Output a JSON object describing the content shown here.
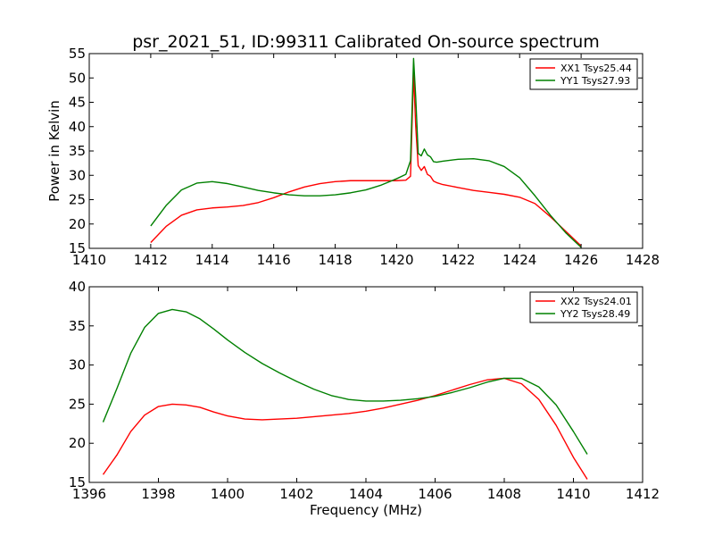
{
  "title": "psr_2021_51, ID:99311 Calibrated On-source spectrum",
  "chart_data": [
    {
      "type": "line",
      "xlabel": "",
      "ylabel": "Power in Kelvin",
      "xlim": [
        1410,
        1428
      ],
      "ylim": [
        15,
        55
      ],
      "xticks": [
        "1410",
        "1412",
        "1414",
        "1416",
        "1418",
        "1420",
        "1422",
        "1424",
        "1426",
        "1428"
      ],
      "yticks": [
        "15",
        "20",
        "25",
        "30",
        "35",
        "40",
        "45",
        "50",
        "55"
      ],
      "grid": false,
      "legend_position": "top-right",
      "series": [
        {
          "name": "XX1 Tsys25.44",
          "color": "#ff0000",
          "x": [
            1412.0,
            1412.5,
            1413.0,
            1413.5,
            1414.0,
            1414.5,
            1415.0,
            1415.5,
            1416.0,
            1416.5,
            1417.0,
            1417.5,
            1418.0,
            1418.5,
            1419.0,
            1419.5,
            1420.0,
            1420.3,
            1420.45,
            1420.55,
            1420.62,
            1420.7,
            1420.8,
            1420.9,
            1421.0,
            1421.1,
            1421.2,
            1421.3,
            1421.5,
            1422.0,
            1422.5,
            1423.0,
            1423.5,
            1424.0,
            1424.5,
            1425.0,
            1425.5,
            1426.0
          ],
          "y": [
            16.2,
            19.5,
            21.8,
            22.9,
            23.3,
            23.5,
            23.8,
            24.4,
            25.4,
            26.6,
            27.6,
            28.3,
            28.7,
            28.9,
            28.9,
            28.9,
            28.9,
            29.0,
            29.8,
            51.0,
            40.0,
            32.0,
            31.0,
            31.8,
            30.2,
            29.8,
            28.8,
            28.5,
            28.1,
            27.5,
            26.9,
            26.5,
            26.1,
            25.5,
            24.2,
            21.5,
            18.5,
            15.5
          ]
        },
        {
          "name": "YY1 Tsys27.93",
          "color": "#008000",
          "x": [
            1412.0,
            1412.5,
            1413.0,
            1413.5,
            1414.0,
            1414.5,
            1415.0,
            1415.5,
            1416.0,
            1416.5,
            1417.0,
            1417.5,
            1418.0,
            1418.5,
            1419.0,
            1419.5,
            1420.0,
            1420.3,
            1420.45,
            1420.55,
            1420.62,
            1420.7,
            1420.8,
            1420.9,
            1421.0,
            1421.1,
            1421.2,
            1421.3,
            1421.5,
            1422.0,
            1422.5,
            1423.0,
            1423.5,
            1424.0,
            1424.5,
            1425.0,
            1425.5,
            1426.0
          ],
          "y": [
            19.6,
            23.8,
            27.0,
            28.4,
            28.7,
            28.3,
            27.6,
            26.9,
            26.4,
            26.0,
            25.8,
            25.8,
            26.0,
            26.4,
            27.0,
            28.0,
            29.3,
            30.2,
            33.0,
            54.0,
            46.0,
            34.5,
            34.0,
            35.4,
            34.2,
            33.8,
            32.8,
            32.7,
            32.9,
            33.3,
            33.4,
            33.0,
            31.8,
            29.5,
            25.8,
            21.8,
            18.2,
            15.2
          ]
        }
      ]
    },
    {
      "type": "line",
      "xlabel": "Frequency (MHz)",
      "ylabel": "",
      "xlim": [
        1396,
        1412
      ],
      "ylim": [
        15,
        40
      ],
      "xticks": [
        "1396",
        "1398",
        "1400",
        "1402",
        "1404",
        "1406",
        "1408",
        "1410",
        "1412"
      ],
      "yticks": [
        "15",
        "20",
        "25",
        "30",
        "35",
        "40"
      ],
      "grid": false,
      "legend_position": "top-right",
      "series": [
        {
          "name": "XX2 Tsys24.01",
          "color": "#ff0000",
          "x": [
            1396.4,
            1396.8,
            1397.2,
            1397.6,
            1398.0,
            1398.4,
            1398.8,
            1399.2,
            1399.6,
            1400.0,
            1400.5,
            1401.0,
            1401.5,
            1402.0,
            1402.5,
            1403.0,
            1403.5,
            1404.0,
            1404.5,
            1405.0,
            1405.5,
            1406.0,
            1406.5,
            1407.0,
            1407.5,
            1408.0,
            1408.5,
            1409.0,
            1409.5,
            1410.0,
            1410.4
          ],
          "y": [
            16.0,
            18.5,
            21.5,
            23.6,
            24.7,
            25.0,
            24.9,
            24.6,
            24.0,
            23.5,
            23.1,
            23.0,
            23.1,
            23.2,
            23.4,
            23.6,
            23.8,
            24.1,
            24.5,
            25.0,
            25.5,
            26.1,
            26.8,
            27.5,
            28.1,
            28.3,
            27.6,
            25.6,
            22.3,
            18.2,
            15.4
          ]
        },
        {
          "name": "YY2 Tsys28.49",
          "color": "#008000",
          "x": [
            1396.4,
            1396.8,
            1397.2,
            1397.6,
            1398.0,
            1398.4,
            1398.8,
            1399.2,
            1399.6,
            1400.0,
            1400.5,
            1401.0,
            1401.5,
            1402.0,
            1402.5,
            1403.0,
            1403.5,
            1404.0,
            1404.5,
            1405.0,
            1405.5,
            1406.0,
            1406.5,
            1407.0,
            1407.5,
            1408.0,
            1408.5,
            1409.0,
            1409.5,
            1410.0,
            1410.4
          ],
          "y": [
            22.7,
            27.0,
            31.5,
            34.8,
            36.6,
            37.1,
            36.8,
            35.9,
            34.6,
            33.2,
            31.6,
            30.2,
            29.0,
            27.9,
            26.9,
            26.1,
            25.6,
            25.4,
            25.4,
            25.5,
            25.7,
            26.0,
            26.5,
            27.1,
            27.8,
            28.3,
            28.3,
            27.2,
            24.9,
            21.5,
            18.6
          ]
        }
      ]
    }
  ]
}
